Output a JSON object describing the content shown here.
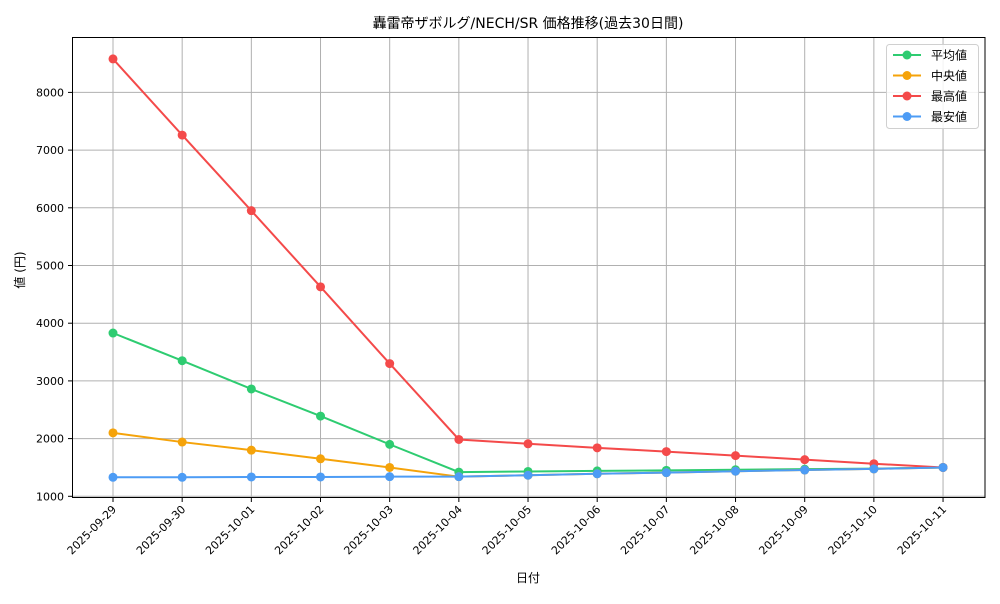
{
  "chart_data": {
    "type": "line",
    "title": "轟雷帝ザボルグ/NECH/SR 価格推移(過去30日間)",
    "xlabel": "日付",
    "ylabel": "値 (円)",
    "categories": [
      "2025-09-29",
      "2025-09-30",
      "2025-10-01",
      "2025-10-02",
      "2025-10-03",
      "2025-10-04",
      "2025-10-05",
      "2025-10-06",
      "2025-10-07",
      "2025-10-08",
      "2025-10-09",
      "2025-10-10",
      "2025-10-11"
    ],
    "yticks": [
      1000,
      2000,
      3000,
      4000,
      5000,
      6000,
      7000,
      8000
    ],
    "ylim": [
      970,
      8950
    ],
    "grid": true,
    "legend_position": "upper right",
    "series": [
      {
        "name": "平均値",
        "color": "#2ecc71",
        "values": [
          3830,
          3350,
          2860,
          2390,
          1900,
          1420,
          1430,
          1440,
          1450,
          1460,
          1470,
          1480,
          1500
        ]
      },
      {
        "name": "中央値",
        "color": "#f5a30a",
        "values": [
          2100,
          1940,
          1800,
          1650,
          1500,
          1340,
          1365,
          1390,
          1410,
          1435,
          1455,
          1475,
          1500
        ]
      },
      {
        "name": "最高値",
        "color": "#f44a4a",
        "values": [
          8580,
          7260,
          5950,
          4630,
          3300,
          1985,
          1910,
          1840,
          1775,
          1705,
          1635,
          1565,
          1500
        ]
      },
      {
        "name": "最安値",
        "color": "#4d9cf5",
        "values": [
          1330,
          1330,
          1335,
          1335,
          1340,
          1340,
          1365,
          1390,
          1410,
          1435,
          1455,
          1475,
          1500
        ]
      }
    ]
  }
}
